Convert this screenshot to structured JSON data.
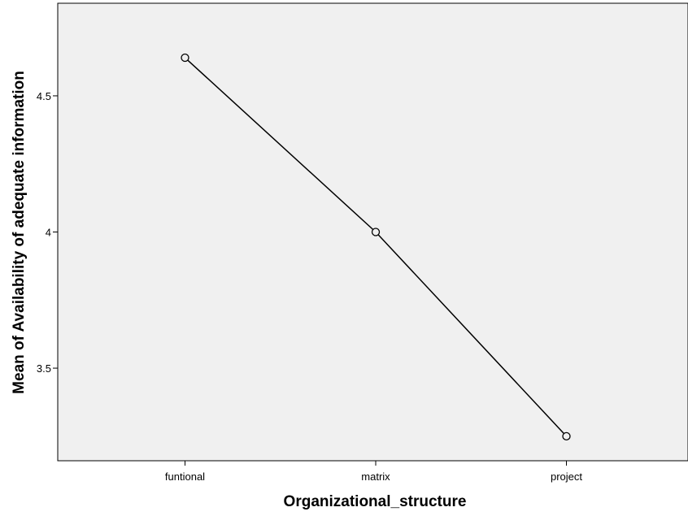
{
  "chart_data": {
    "type": "line",
    "title": "",
    "xlabel": "Organizational_structure",
    "ylabel": "Mean of Availability of adequate information",
    "categories": [
      "funtional",
      "matrix",
      "project"
    ],
    "series": [
      {
        "values": [
          4.64,
          4.0,
          3.25
        ]
      }
    ],
    "yticks": [
      "3.5",
      "4",
      "4.5"
    ],
    "ytick_values": [
      3.5,
      4.0,
      4.5
    ],
    "ylim": [
      3.16,
      4.84
    ],
    "grid": false,
    "legend": "none",
    "colors": {
      "plot_bg": "#f0f0f0",
      "line": "#000000",
      "marker_fill": "#f0f0f0"
    },
    "marker": "circle"
  }
}
